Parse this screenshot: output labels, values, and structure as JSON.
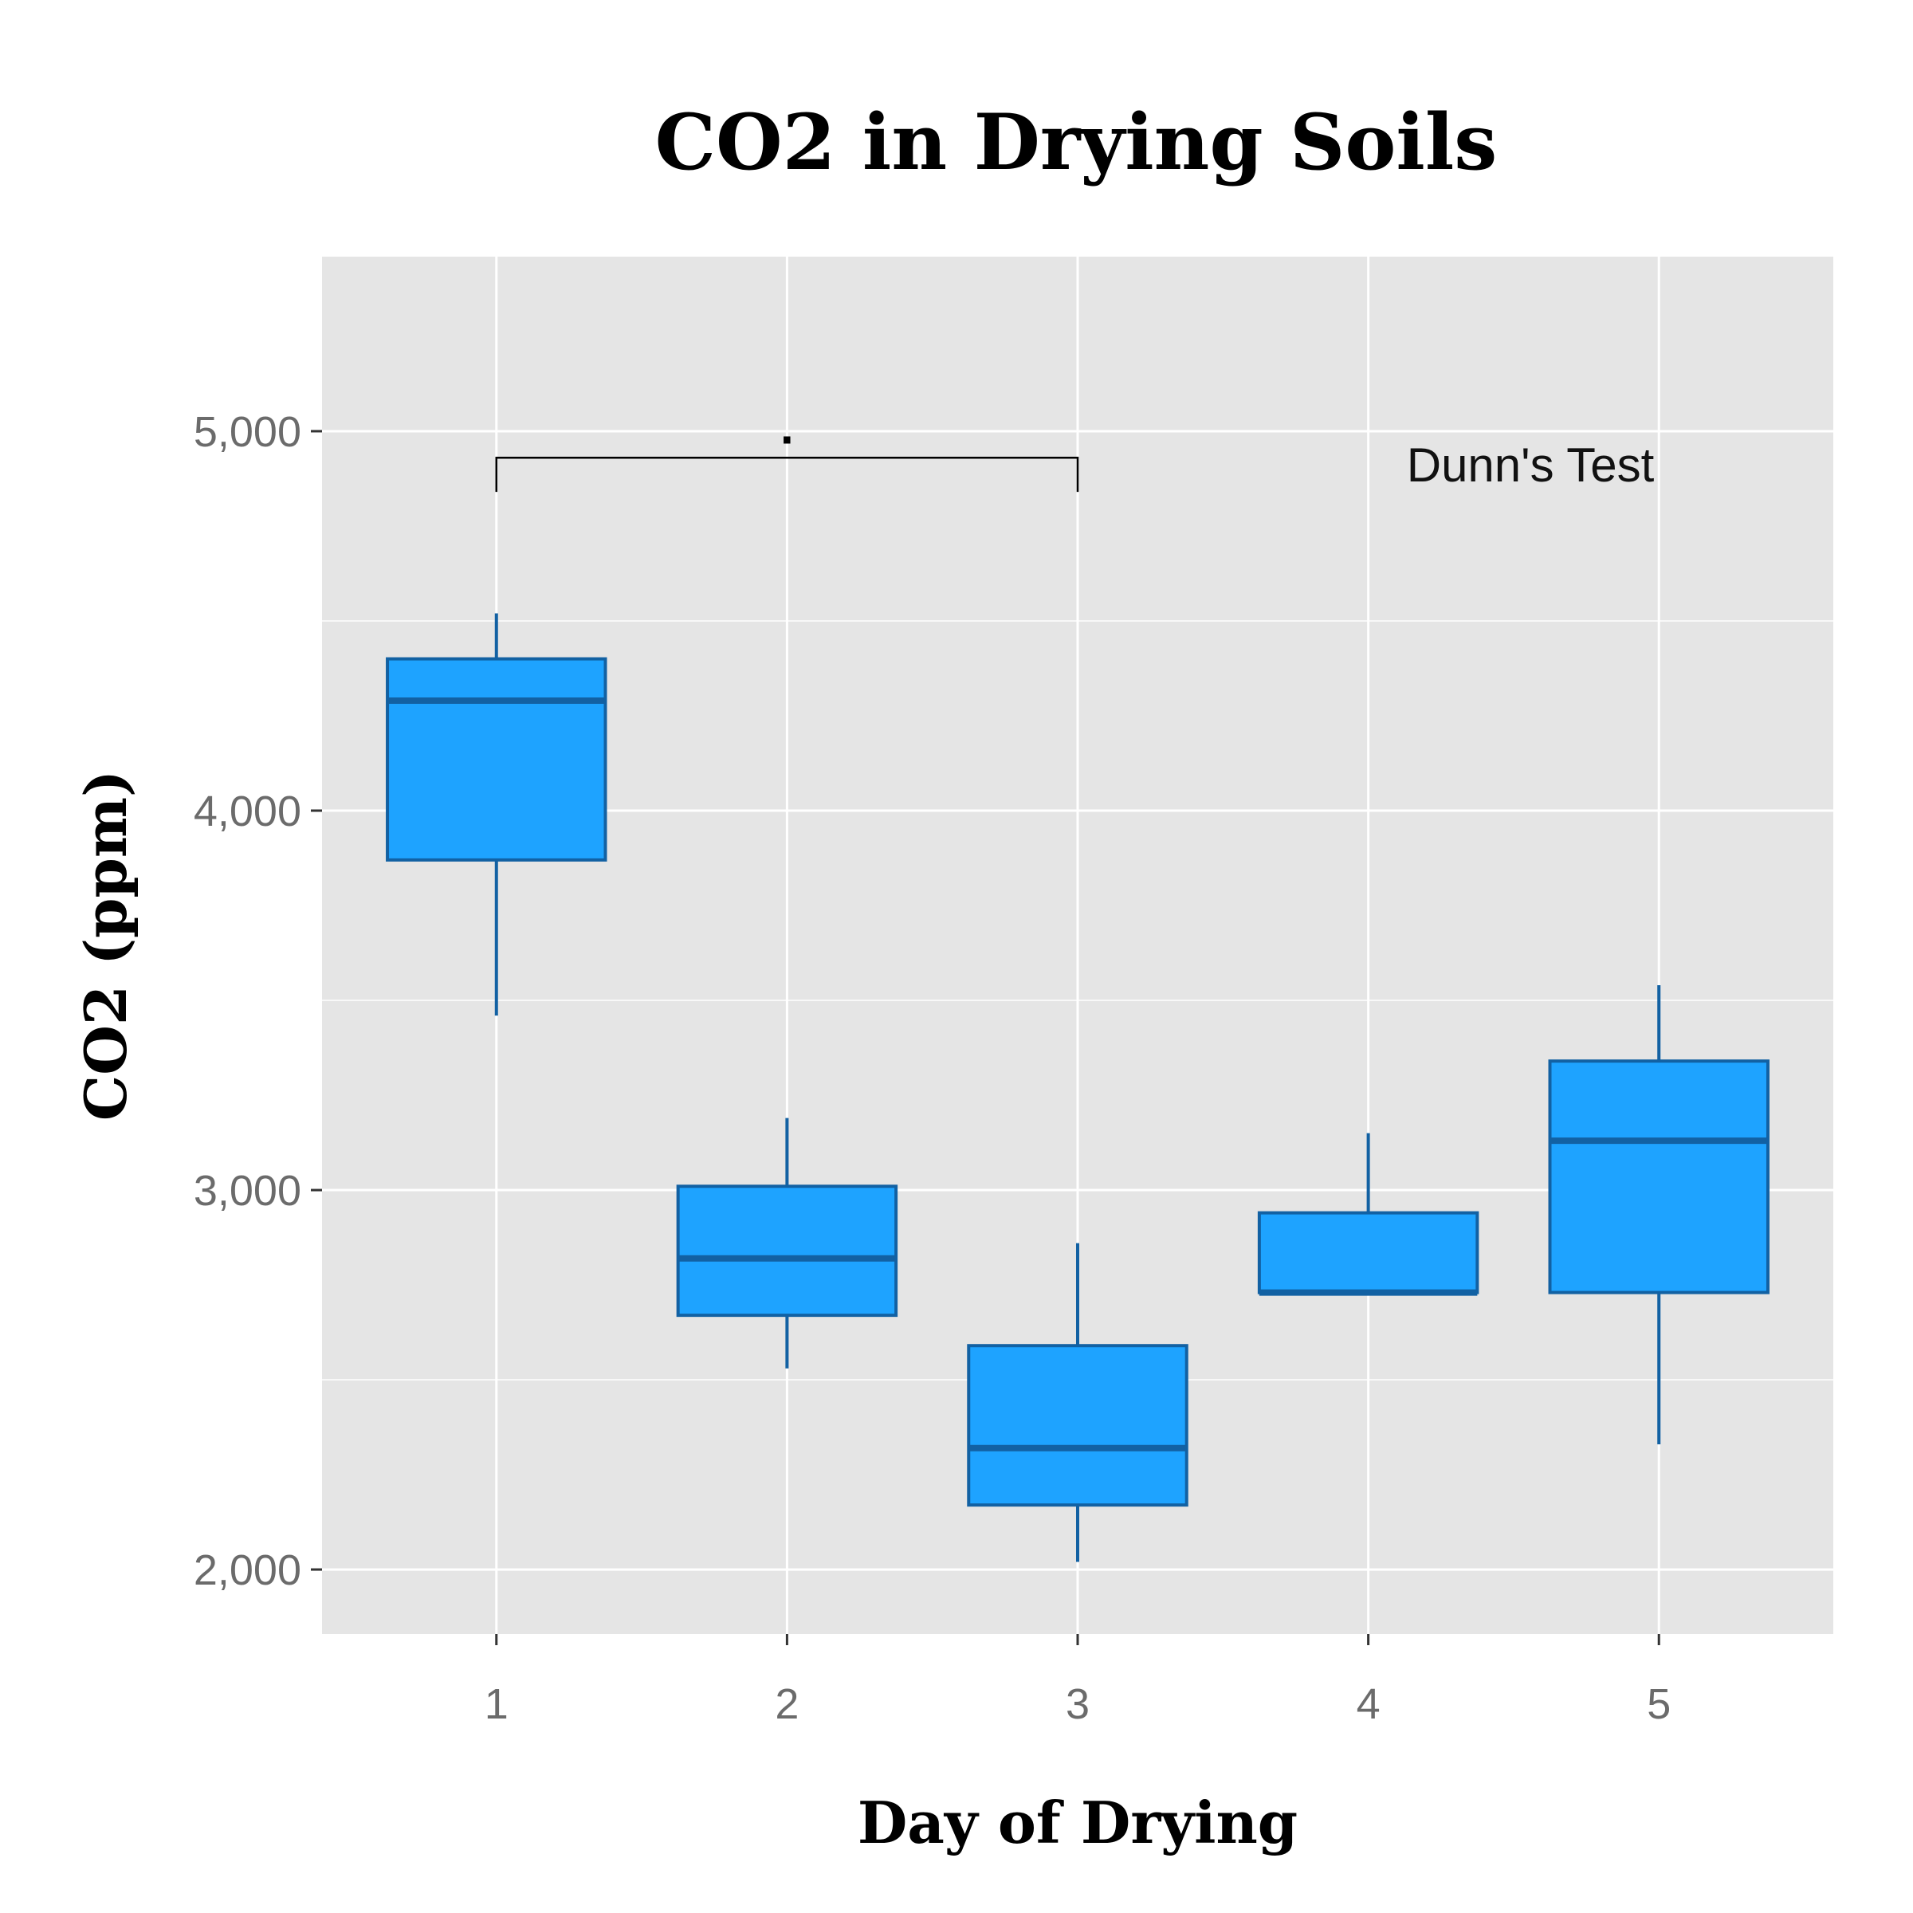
{
  "colors": {
    "panel": "#e5e5e5",
    "grid": "#ffffff",
    "box_fill": "#1ea3ff",
    "box_line": "#1261a3",
    "tick": "#6b6b6b"
  },
  "chart_data": {
    "type": "boxplot",
    "title": "CO2 in Drying Soils",
    "xlabel": "Day of Drying",
    "ylabel": "CO2 (ppm)",
    "ylim": [
      1830,
      5460
    ],
    "y_ticks": [
      2000,
      3000,
      4000,
      5000
    ],
    "y_tick_labels": [
      "2,000",
      "3,000",
      "4,000",
      "5,000"
    ],
    "grid": true,
    "legend": "none",
    "categories": [
      "1",
      "2",
      "3",
      "4",
      "5"
    ],
    "boxes": [
      {
        "category": "1",
        "whisker_low": 3460,
        "q1": 3870,
        "median": 4290,
        "q3": 4400,
        "whisker_high": 4520
      },
      {
        "category": "2",
        "whisker_low": 2530,
        "q1": 2670,
        "median": 2820,
        "q3": 3010,
        "whisker_high": 3190
      },
      {
        "category": "3",
        "whisker_low": 2020,
        "q1": 2170,
        "median": 2320,
        "q3": 2590,
        "whisker_high": 2860
      },
      {
        "category": "4",
        "whisker_low": 2730,
        "q1": 2730,
        "median": 2730,
        "q3": 2940,
        "whisker_high": 3150
      },
      {
        "category": "5",
        "whisker_low": 2330,
        "q1": 2730,
        "median": 3130,
        "q3": 3340,
        "whisker_high": 3540
      }
    ],
    "comparisons": [
      {
        "from": "1",
        "to": "3",
        "y": 4930,
        "drop_to": 4840,
        "label": "."
      }
    ],
    "annotation": "Dunn's Test"
  }
}
